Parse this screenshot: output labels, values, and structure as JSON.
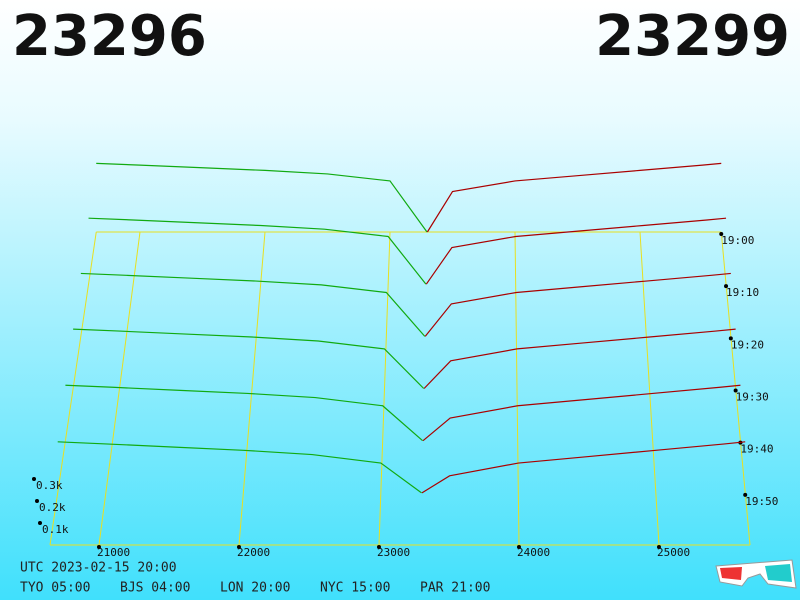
{
  "chart_data": {
    "type": "depth3d",
    "bid": 23296,
    "ask": 23299,
    "bid_color": "#11aa11",
    "ask_color": "#aa0000",
    "bid_text_color": "#11bb11",
    "ask_text_color": "#bb0000",
    "grid_color": "#e8e020",
    "xlim": [
      20650,
      25650
    ],
    "xticks": [
      21000,
      22000,
      23000,
      24000,
      25000
    ],
    "ylim": [
      0,
      400
    ],
    "yticks": [
      {
        "value": 100,
        "label": "0.1k"
      },
      {
        "value": 200,
        "label": "0.2k"
      },
      {
        "value": 300,
        "label": "0.3k"
      }
    ],
    "time_ticks": [
      "19:00",
      "19:10",
      "19:20",
      "19:30",
      "19:40",
      "19:50"
    ],
    "bid_prices": [
      20650,
      21000,
      21500,
      22000,
      22500,
      23000,
      23296
    ],
    "ask_prices": [
      23299,
      23500,
      24000,
      24500,
      25000,
      25500,
      25650
    ],
    "snapshots": [
      {
        "bids": [
          390,
          380,
          365,
          350,
          330,
          290,
          0
        ],
        "asks": [
          0,
          230,
          290,
          320,
          350,
          380,
          390
        ]
      },
      {
        "bids": [
          360,
          350,
          335,
          320,
          300,
          260,
          0
        ],
        "asks": [
          0,
          200,
          260,
          290,
          320,
          350,
          360
        ]
      },
      {
        "bids": [
          330,
          320,
          305,
          290,
          270,
          230,
          0
        ],
        "asks": [
          0,
          170,
          230,
          260,
          290,
          320,
          330
        ]
      },
      {
        "bids": [
          300,
          290,
          275,
          260,
          240,
          200,
          0
        ],
        "asks": [
          0,
          140,
          200,
          230,
          260,
          290,
          300
        ]
      },
      {
        "bids": [
          270,
          260,
          245,
          230,
          210,
          170,
          0
        ],
        "asks": [
          0,
          110,
          170,
          200,
          230,
          260,
          270
        ]
      },
      {
        "bids": [
          240,
          230,
          215,
          200,
          180,
          140,
          0
        ],
        "asks": [
          0,
          80,
          140,
          170,
          200,
          230,
          240
        ]
      }
    ],
    "timestamp": "UTC 2023-02-15 20:00",
    "zones": [
      "TYO 05:00",
      "BJS 04:00",
      "LON 20:00",
      "NYC 15:00",
      "PAR 21:00"
    ]
  }
}
